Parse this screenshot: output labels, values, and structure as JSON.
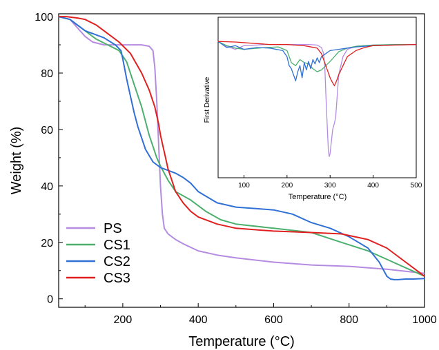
{
  "chart_data": [
    {
      "type": "line",
      "xlabel": "Temperature (°C)",
      "ylabel": "Weight (%)",
      "xlim": [
        30,
        1000
      ],
      "ylim": [
        -3,
        101
      ],
      "xticks": [
        200,
        400,
        600,
        800,
        1000
      ],
      "yticks": [
        0,
        20,
        40,
        60,
        80,
        100
      ],
      "grid": false,
      "legend_position": "bottom-left",
      "series": [
        {
          "name": "PS",
          "color": "#b48be0",
          "x": [
            30,
            60,
            80,
            100,
            120,
            150,
            200,
            250,
            270,
            280,
            285,
            290,
            295,
            300,
            305,
            310,
            320,
            340,
            360,
            400,
            450,
            500,
            600,
            700,
            800,
            900,
            1000
          ],
          "y": [
            100,
            99,
            96,
            93,
            91,
            90,
            90,
            90,
            89.5,
            88,
            82,
            70,
            55,
            40,
            30,
            25,
            23,
            21,
            19.5,
            17,
            15.5,
            14.5,
            13,
            12,
            11.5,
            10.5,
            9
          ]
        },
        {
          "name": "CS1",
          "color": "#4caf6e",
          "x": [
            30,
            60,
            80,
            100,
            130,
            160,
            190,
            210,
            230,
            250,
            270,
            290,
            300,
            320,
            340,
            380,
            420,
            460,
            500,
            600,
            700,
            780,
            850,
            900,
            950,
            1000
          ],
          "y": [
            100,
            99,
            97,
            95,
            92,
            90,
            88,
            84,
            76,
            68,
            58,
            50,
            47,
            42,
            38,
            35,
            31,
            28,
            26.5,
            25,
            23.5,
            20,
            17,
            14,
            11,
            8
          ]
        },
        {
          "name": "CS2",
          "color": "#2f6fd6",
          "x": [
            30,
            60,
            80,
            100,
            120,
            150,
            180,
            195,
            200,
            210,
            220,
            230,
            240,
            250,
            260,
            280,
            300,
            320,
            340,
            360,
            380,
            400,
            450,
            500,
            550,
            600,
            650,
            700,
            750,
            800,
            850,
            880,
            900,
            910,
            920,
            930,
            950,
            970,
            1000
          ],
          "y": [
            100,
            99,
            97,
            95,
            94,
            92.5,
            90,
            88,
            85,
            78,
            72,
            66,
            61,
            57,
            53,
            48.5,
            46.5,
            45.5,
            44.5,
            43,
            41,
            38,
            34,
            32.5,
            32,
            31.5,
            30,
            27,
            25,
            22,
            18,
            13,
            8,
            7,
            6.8,
            6.8,
            7,
            7,
            7.2
          ]
        },
        {
          "name": "CS3",
          "color": "#e01f1f",
          "x": [
            30,
            50,
            80,
            100,
            130,
            160,
            190,
            220,
            250,
            270,
            285,
            295,
            300,
            310,
            320,
            340,
            360,
            380,
            400,
            450,
            500,
            600,
            700,
            780,
            850,
            900,
            950,
            1000
          ],
          "y": [
            100,
            100,
            99.5,
            99,
            97,
            94,
            91,
            87,
            80,
            74,
            68,
            62,
            58,
            52,
            46,
            38,
            34,
            31,
            29,
            26.5,
            25,
            24,
            23.5,
            23,
            21,
            18,
            13,
            8
          ]
        }
      ]
    },
    {
      "type": "line",
      "xlabel": "Temperature (°C)",
      "ylabel": "First Derivative",
      "xlim": [
        40,
        500
      ],
      "ylim": [
        -2.2,
        0.45
      ],
      "xticks": [
        100,
        200,
        300,
        400,
        500
      ],
      "grid": false,
      "series": [
        {
          "color": "#b48be0",
          "x": [
            40,
            60,
            80,
            100,
            150,
            200,
            250,
            270,
            280,
            285,
            288,
            290,
            293,
            296,
            298,
            300,
            303,
            306,
            310,
            313,
            316,
            320,
            330,
            340,
            360,
            400,
            450,
            500
          ],
          "y": [
            0.05,
            -0.03,
            -0.08,
            -0.02,
            0,
            0,
            0,
            -0.01,
            -0.05,
            -0.15,
            -0.4,
            -0.8,
            -1.3,
            -1.75,
            -1.85,
            -1.8,
            -1.6,
            -1.4,
            -1.3,
            -1.2,
            -0.9,
            -0.5,
            -0.2,
            -0.08,
            -0.03,
            -0.01,
            0,
            0
          ]
        },
        {
          "color": "#4caf6e",
          "x": [
            40,
            60,
            80,
            100,
            150,
            180,
            200,
            210,
            220,
            230,
            240,
            250,
            260,
            270,
            280,
            290,
            300,
            310,
            320,
            340,
            360,
            400,
            450,
            500
          ],
          "y": [
            0.05,
            -0.02,
            -0.06,
            -0.08,
            -0.05,
            -0.04,
            -0.1,
            -0.3,
            -0.35,
            -0.25,
            -0.3,
            -0.32,
            -0.4,
            -0.45,
            -0.42,
            -0.35,
            -0.28,
            -0.2,
            -0.12,
            -0.06,
            -0.03,
            -0.01,
            0,
            0
          ]
        },
        {
          "color": "#2f6fd6",
          "x": [
            40,
            60,
            80,
            100,
            130,
            160,
            190,
            200,
            205,
            210,
            215,
            220,
            225,
            230,
            235,
            240,
            245,
            250,
            255,
            260,
            265,
            270,
            275,
            280,
            290,
            300,
            320,
            340,
            360,
            400,
            450,
            500
          ],
          "y": [
            0.05,
            -0.05,
            -0.02,
            -0.08,
            -0.05,
            -0.06,
            -0.1,
            -0.2,
            -0.35,
            -0.4,
            -0.5,
            -0.6,
            -0.45,
            -0.35,
            -0.55,
            -0.3,
            -0.42,
            -0.28,
            -0.4,
            -0.25,
            -0.32,
            -0.22,
            -0.3,
            -0.2,
            -0.15,
            -0.1,
            -0.08,
            -0.06,
            -0.04,
            -0.02,
            -0.01,
            0
          ]
        },
        {
          "color": "#e01f1f",
          "x": [
            40,
            80,
            120,
            160,
            200,
            240,
            270,
            280,
            290,
            300,
            305,
            310,
            315,
            320,
            330,
            340,
            360,
            380,
            400,
            450,
            500
          ],
          "y": [
            0.05,
            0.04,
            0.02,
            0,
            0,
            -0.02,
            -0.06,
            -0.15,
            -0.35,
            -0.55,
            -0.62,
            -0.68,
            -0.6,
            -0.5,
            -0.35,
            -0.2,
            -0.1,
            -0.05,
            -0.02,
            -0.01,
            0
          ]
        }
      ]
    }
  ]
}
